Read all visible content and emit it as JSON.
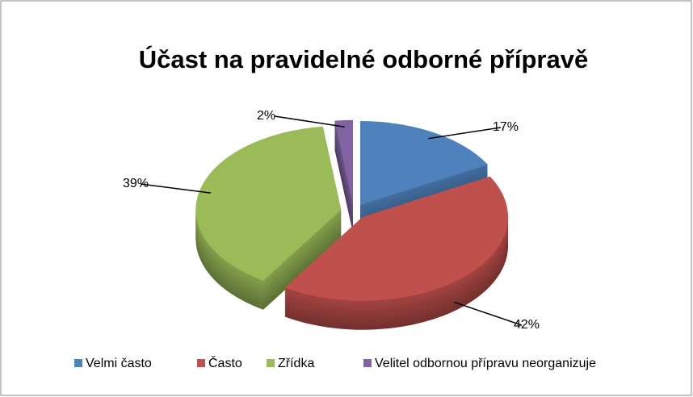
{
  "chart_data": {
    "type": "pie",
    "title": "Účast na pravidelné odborné přípravě",
    "categories": [
      "Velmi často",
      "Často",
      "Zřídka",
      "Velitel odbornou přípravu neorganizuje"
    ],
    "values": [
      17,
      42,
      39,
      2
    ],
    "value_labels": [
      "17%",
      "42%",
      "39%",
      "2%"
    ],
    "colors": [
      "#4f81bd",
      "#c0504d",
      "#9bbb59",
      "#8064a2"
    ],
    "legend": "bottom"
  }
}
